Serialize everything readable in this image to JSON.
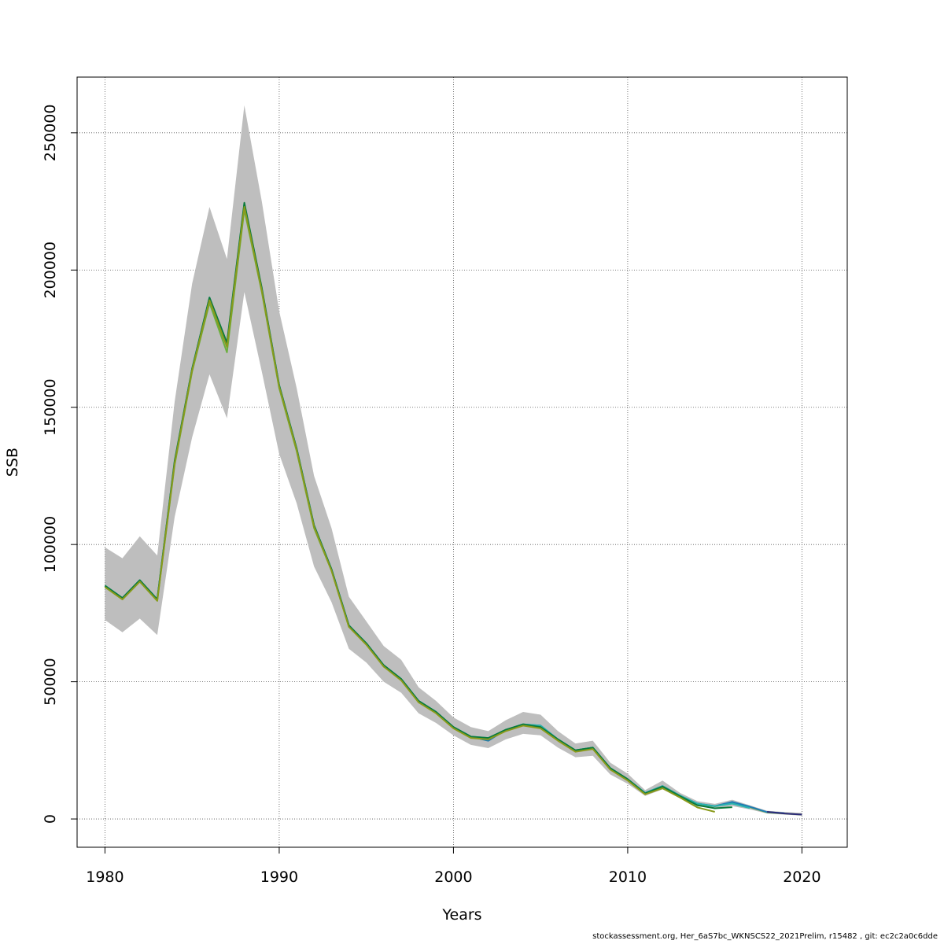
{
  "chart_data": {
    "type": "line",
    "xlabel": "Years",
    "ylabel": "SSB",
    "xlim": [
      1978.4,
      2022.6
    ],
    "ylim": [
      -10300,
      270300
    ],
    "x_ticks": [
      1980,
      1990,
      2000,
      2010,
      2020
    ],
    "y_ticks": [
      0,
      50000,
      100000,
      150000,
      200000,
      250000
    ],
    "grid": true,
    "confidence_band": {
      "x": [
        1980,
        1981,
        1982,
        1983,
        1984,
        1985,
        1986,
        1987,
        1988,
        1989,
        1990,
        1991,
        1992,
        1993,
        1994,
        1995,
        1996,
        1997,
        1998,
        1999,
        2000,
        2001,
        2002,
        2003,
        2004,
        2005,
        2006,
        2007,
        2008,
        2009,
        2010,
        2011,
        2012,
        2013,
        2014,
        2015,
        2016,
        2017,
        2018,
        2019,
        2020
      ],
      "upper": [
        99000,
        95000,
        103000,
        96000,
        152000,
        195000,
        223000,
        204000,
        260000,
        225000,
        185000,
        157000,
        125000,
        106000,
        81000,
        72000,
        63000,
        58000,
        48000,
        43000,
        37000,
        33500,
        32000,
        36000,
        39000,
        38000,
        32000,
        27500,
        28500,
        20500,
        16500,
        10500,
        14000,
        9500,
        6500,
        5500,
        7000,
        5000,
        3000,
        2500,
        2200
      ],
      "lower": [
        72500,
        68000,
        73000,
        67000,
        110000,
        139000,
        162000,
        146000,
        192000,
        163000,
        133000,
        115000,
        92000,
        79000,
        62000,
        57000,
        50000,
        46000,
        38500,
        35000,
        30500,
        27000,
        25800,
        29000,
        31000,
        30500,
        26000,
        22500,
        23000,
        16200,
        12800,
        8400,
        10800,
        7500,
        4600,
        3800,
        4700,
        3500,
        2000,
        1600,
        1200
      ]
    },
    "series": [
      {
        "color": "#6BAF3E",
        "x": [
          1980,
          1981,
          1982,
          1983,
          1984,
          1985,
          1986,
          1987,
          1988,
          1989,
          1990,
          1991,
          1992,
          1993,
          1994,
          1995,
          1996,
          1997,
          1998,
          1999,
          2000,
          2001,
          2002,
          2003,
          2004,
          2005,
          2006,
          2007,
          2008,
          2009,
          2010,
          2011,
          2012,
          2013,
          2014,
          2015,
          2016,
          2017,
          2018,
          2019,
          2020
        ],
        "values": [
          84500,
          80000,
          86500,
          79500,
          129000,
          163000,
          188000,
          170000,
          222000,
          192000,
          157000,
          134000,
          106000,
          90500,
          70000,
          64000,
          55500,
          51000,
          42500,
          39000,
          33500,
          30000,
          29000,
          32500,
          34500,
          34000,
          29000,
          25000,
          26000,
          18500,
          14500,
          9300,
          12000,
          8500,
          5500,
          4600,
          5800,
          4300,
          2400,
          2000,
          1600
        ]
      },
      {
        "color": "#1E7BB4",
        "x": [
          1980,
          1981,
          1982,
          1983,
          1984,
          1985,
          1986,
          1987,
          1988,
          1989,
          1990,
          1991,
          1992,
          1993,
          1994,
          1995,
          1996,
          1997,
          1998,
          1999,
          2000,
          2001,
          2002,
          2003,
          2004,
          2005,
          2006,
          2007,
          2008,
          2009,
          2010,
          2011,
          2012,
          2013,
          2014,
          2015,
          2016,
          2017,
          2018,
          2019
        ],
        "values": [
          85000,
          80500,
          87000,
          80000,
          130000,
          164000,
          190000,
          173000,
          224000,
          193000,
          158000,
          135000,
          107000,
          91000,
          70500,
          64000,
          56000,
          51000,
          43000,
          39000,
          33500,
          30000,
          28500,
          32500,
          34500,
          34000,
          29000,
          25000,
          26000,
          18500,
          14500,
          9500,
          12000,
          8500,
          5600,
          4700,
          6200,
          4500,
          2500,
          2100
        ]
      },
      {
        "color": "#2BB3B0",
        "x": [
          1980,
          1981,
          1982,
          1983,
          1984,
          1985,
          1986,
          1987,
          1988,
          1989,
          1990,
          1991,
          1992,
          1993,
          1994,
          1995,
          1996,
          1997,
          1998,
          1999,
          2000,
          2001,
          2002,
          2003,
          2004,
          2005,
          2006,
          2007,
          2008,
          2009,
          2010,
          2011,
          2012,
          2013,
          2014,
          2015,
          2016,
          2017
        ],
        "values": [
          85000,
          80500,
          87000,
          80000,
          130000,
          164000,
          189500,
          172500,
          224000,
          193000,
          158000,
          135000,
          107000,
          91000,
          70500,
          64000,
          56000,
          51000,
          43000,
          39000,
          33500,
          30000,
          29500,
          32500,
          34500,
          34000,
          29000,
          25000,
          26000,
          18500,
          14500,
          9500,
          12000,
          8500,
          5600,
          4700,
          5600,
          4000
        ]
      },
      {
        "color": "#0B7A3B",
        "x": [
          1980,
          1981,
          1982,
          1983,
          1984,
          1985,
          1986,
          1987,
          1988,
          1989,
          1990,
          1991,
          1992,
          1993,
          1994,
          1995,
          1996,
          1997,
          1998,
          1999,
          2000,
          2001,
          2002,
          2003,
          2004,
          2005,
          2006,
          2007,
          2008,
          2009,
          2010,
          2011,
          2012,
          2013,
          2014,
          2015,
          2016
        ],
        "values": [
          85000,
          80500,
          87000,
          80000,
          130500,
          164000,
          190000,
          173500,
          224500,
          193500,
          158000,
          135000,
          107000,
          91000,
          70500,
          64000,
          56000,
          51000,
          43000,
          39000,
          33500,
          30000,
          29500,
          32500,
          34500,
          33500,
          29000,
          25000,
          26000,
          18500,
          14500,
          9300,
          11800,
          8300,
          5000,
          3900,
          4300
        ]
      },
      {
        "color": "#8A9A1B",
        "x": [
          1980,
          1981,
          1982,
          1983,
          1984,
          1985,
          1986,
          1987,
          1988,
          1989,
          1990,
          1991,
          1992,
          1993,
          1994,
          1995,
          1996,
          1997,
          1998,
          1999,
          2000,
          2001,
          2002,
          2003,
          2004,
          2005,
          2006,
          2007,
          2008,
          2009,
          2010,
          2011,
          2012,
          2013,
          2014,
          2015
        ],
        "values": [
          84500,
          80000,
          86500,
          79500,
          129500,
          163500,
          189000,
          172000,
          223000,
          192500,
          157500,
          134500,
          106500,
          90500,
          70000,
          63500,
          55500,
          50500,
          42500,
          38500,
          33000,
          29500,
          29000,
          32000,
          34000,
          33000,
          28500,
          24500,
          25500,
          18000,
          14000,
          9000,
          11200,
          7800,
          4200,
          2600
        ]
      },
      {
        "color": "#2D2A7B",
        "x": [
          2018,
          2019,
          2020
        ],
        "values": [
          2600,
          2000,
          1600
        ]
      }
    ]
  },
  "footer": "stockassessment.org, Her_6aS7bc_WKNSCS22_2021Prelim, r15482 , git: ec2c2a0c6dde"
}
